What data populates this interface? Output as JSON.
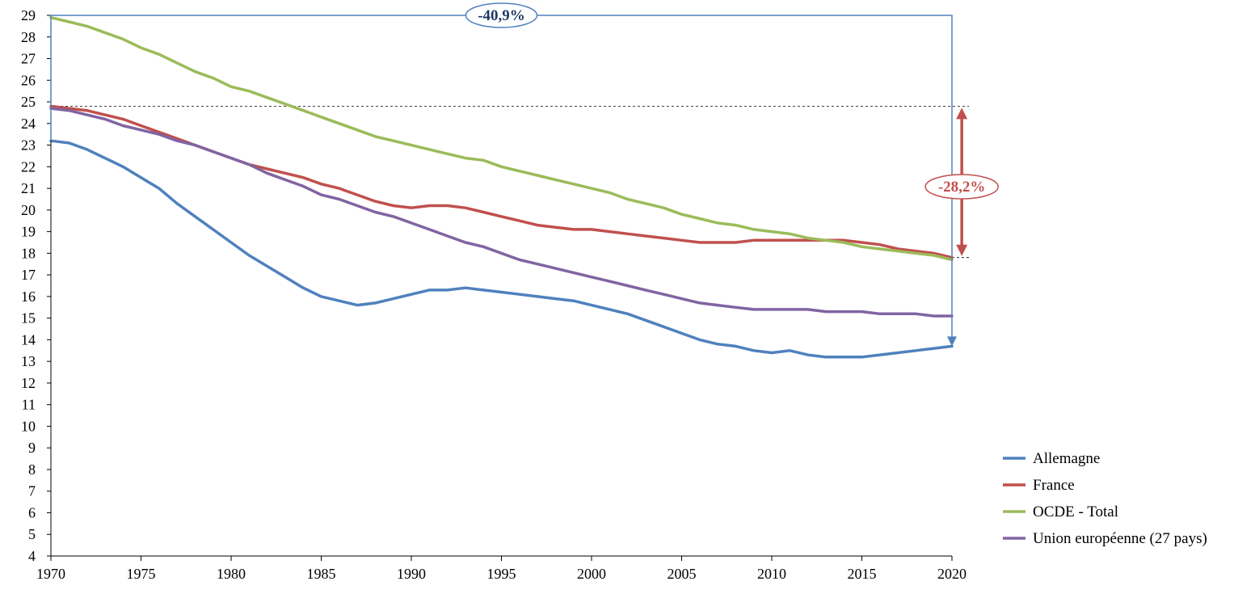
{
  "chart_data": {
    "type": "line",
    "title": "",
    "xlabel": "",
    "ylabel": "",
    "xlim": [
      1970,
      2020
    ],
    "ylim": [
      4,
      29
    ],
    "x_ticks": [
      1970,
      1975,
      1980,
      1985,
      1990,
      1995,
      2000,
      2005,
      2010,
      2015,
      2020
    ],
    "y_ticks": [
      4,
      5,
      6,
      7,
      8,
      9,
      10,
      11,
      12,
      13,
      14,
      15,
      16,
      17,
      18,
      19,
      20,
      21,
      22,
      23,
      24,
      25,
      26,
      27,
      28,
      29
    ],
    "grid": false,
    "legend_position": "bottom-right",
    "x": [
      1970,
      1971,
      1972,
      1973,
      1974,
      1975,
      1976,
      1977,
      1978,
      1979,
      1980,
      1981,
      1982,
      1983,
      1984,
      1985,
      1986,
      1987,
      1988,
      1989,
      1990,
      1991,
      1992,
      1993,
      1994,
      1995,
      1996,
      1997,
      1998,
      1999,
      2000,
      2001,
      2002,
      2003,
      2004,
      2005,
      2006,
      2007,
      2008,
      2009,
      2010,
      2011,
      2012,
      2013,
      2014,
      2015,
      2016,
      2017,
      2018,
      2019,
      2020
    ],
    "series": [
      {
        "name": "Allemagne",
        "color": "#4f81bd",
        "values": [
          23.2,
          23.1,
          22.8,
          22.4,
          22.0,
          21.5,
          21.0,
          20.3,
          19.7,
          19.1,
          18.5,
          17.9,
          17.4,
          16.9,
          16.4,
          16.0,
          15.8,
          15.6,
          15.7,
          15.9,
          16.1,
          16.3,
          16.3,
          16.4,
          16.3,
          16.2,
          16.1,
          16.0,
          15.9,
          15.8,
          15.6,
          15.4,
          15.2,
          14.9,
          14.6,
          14.3,
          14.0,
          13.8,
          13.7,
          13.5,
          13.4,
          13.5,
          13.3,
          13.2,
          13.2,
          13.2,
          13.3,
          13.4,
          13.5,
          13.6,
          13.7
        ]
      },
      {
        "name": "France",
        "color": "#c0504d",
        "values": [
          24.8,
          24.7,
          24.6,
          24.4,
          24.2,
          23.9,
          23.6,
          23.3,
          23.0,
          22.7,
          22.4,
          22.1,
          21.9,
          21.7,
          21.5,
          21.2,
          21.0,
          20.7,
          20.4,
          20.2,
          20.1,
          20.2,
          20.2,
          20.1,
          19.9,
          19.7,
          19.5,
          19.3,
          19.2,
          19.1,
          19.1,
          19.0,
          18.9,
          18.8,
          18.7,
          18.6,
          18.5,
          18.5,
          18.5,
          18.6,
          18.6,
          18.6,
          18.6,
          18.6,
          18.6,
          18.5,
          18.4,
          18.2,
          18.1,
          18.0,
          17.8
        ]
      },
      {
        "name": "OCDE - Total",
        "color": "#9bbb59",
        "values": [
          28.9,
          28.7,
          28.5,
          28.2,
          27.9,
          27.5,
          27.2,
          26.8,
          26.4,
          26.1,
          25.7,
          25.5,
          25.2,
          24.9,
          24.6,
          24.3,
          24.0,
          23.7,
          23.4,
          23.2,
          23.0,
          22.8,
          22.6,
          22.4,
          22.3,
          22.0,
          21.8,
          21.6,
          21.4,
          21.2,
          21.0,
          20.8,
          20.5,
          20.3,
          20.1,
          19.8,
          19.6,
          19.4,
          19.3,
          19.1,
          19.0,
          18.9,
          18.7,
          18.6,
          18.5,
          18.3,
          18.2,
          18.1,
          18.0,
          17.9,
          17.7
        ]
      },
      {
        "name": "Union européenne (27 pays)",
        "color": "#8064a2",
        "values": [
          24.7,
          24.6,
          24.4,
          24.2,
          23.9,
          23.7,
          23.5,
          23.2,
          23.0,
          22.7,
          22.4,
          22.1,
          21.7,
          21.4,
          21.1,
          20.7,
          20.5,
          20.2,
          19.9,
          19.7,
          19.4,
          19.1,
          18.8,
          18.5,
          18.3,
          18.0,
          17.7,
          17.5,
          17.3,
          17.1,
          16.9,
          16.7,
          16.5,
          16.3,
          16.1,
          15.9,
          15.7,
          15.6,
          15.5,
          15.4,
          15.4,
          15.4,
          15.4,
          15.3,
          15.3,
          15.3,
          15.2,
          15.2,
          15.2,
          15.1,
          15.1
        ]
      }
    ],
    "annotations": [
      {
        "label": "-40,9%",
        "color": "#4f81bd",
        "from_x": 1970,
        "to_x": 2020,
        "top_y": 29.5,
        "end_y": 13.7
      },
      {
        "label": "-28,2%",
        "color": "#c0504d",
        "at_x": 2020.5,
        "from_y": 24.8,
        "to_y": 17.8,
        "ref_line_y": 24.8
      }
    ]
  }
}
